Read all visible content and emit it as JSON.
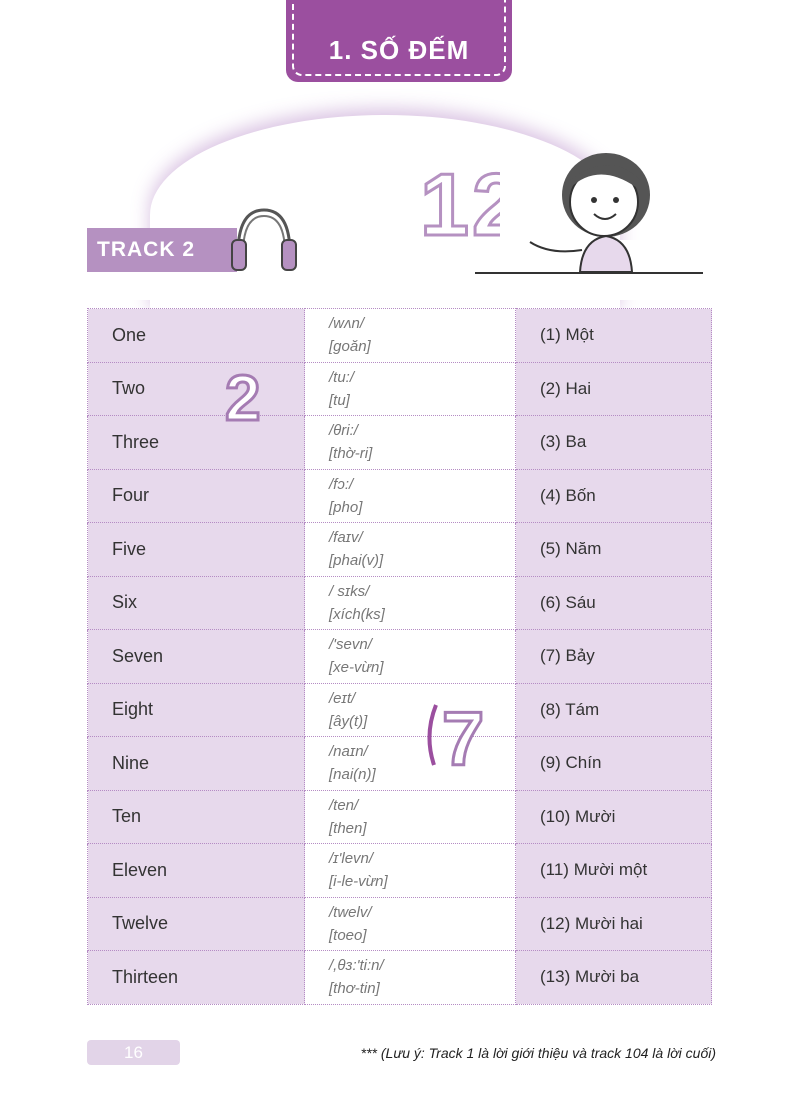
{
  "header": {
    "title": "1. SỐ ĐẾM",
    "color": "#9b4f9f"
  },
  "track": {
    "label": "TRACK 2",
    "icon": "headphones-icon"
  },
  "table": {
    "rows": [
      {
        "english": "One",
        "ipa": "/wʌn/",
        "reading": "[goăn]",
        "vietnamese": "(1) Một"
      },
      {
        "english": "Two",
        "ipa": "/tu:/",
        "reading": "[tu]",
        "vietnamese": "(2) Hai"
      },
      {
        "english": "Three",
        "ipa": "/θri:/",
        "reading": "[thờ-ri]",
        "vietnamese": "(3) Ba"
      },
      {
        "english": "Four",
        "ipa": "/fɔ:/",
        "reading": "[pho]",
        "vietnamese": "(4) Bốn"
      },
      {
        "english": "Five",
        "ipa": "/faɪv/",
        "reading": "[phai(v)]",
        "vietnamese": "(5) Năm"
      },
      {
        "english": "Six",
        "ipa": "/ sɪks/",
        "reading": "[xích(ks]",
        "vietnamese": "(6) Sáu"
      },
      {
        "english": "Seven",
        "ipa": "/'sevn/",
        "reading": "[xe-vừn]",
        "vietnamese": "(7) Bảy"
      },
      {
        "english": "Eight",
        "ipa": "/eɪt/",
        "reading": "[ây(t)]",
        "vietnamese": "(8) Tám"
      },
      {
        "english": "Nine",
        "ipa": "/naɪn/",
        "reading": "[nai(n)]",
        "vietnamese": "(9) Chín"
      },
      {
        "english": "Ten",
        "ipa": "/ten/",
        "reading": "[then]",
        "vietnamese": "(10) Mười"
      },
      {
        "english": "Eleven",
        "ipa": "/ɪ'levn/",
        "reading": "[i-le-vừn]",
        "vietnamese": "(11) Mười một"
      },
      {
        "english": "Twelve",
        "ipa": "/twelv/",
        "reading": "[toeo]",
        "vietnamese": "(12) Mười hai"
      },
      {
        "english": "Thirteen",
        "ipa": "/,θɜ:'ti:n/",
        "reading": "[thơ-tin]",
        "vietnamese": "(13) Mười ba"
      }
    ]
  },
  "footer": {
    "page_number": "16",
    "note": "*** (Lưu ý: Track 1 là lời giới thiệu và track 104 là lời cuối)"
  }
}
